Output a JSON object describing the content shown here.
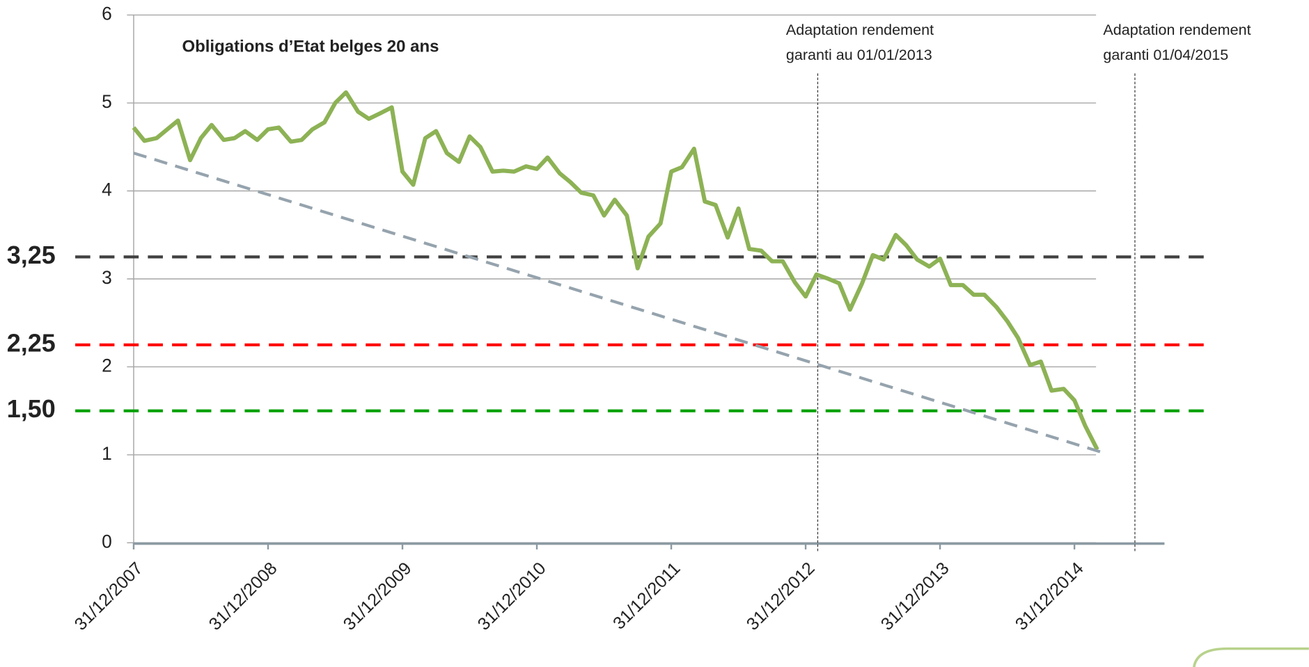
{
  "chart_data": {
    "type": "line",
    "title": "Obligations d’Etat belges 20 ans",
    "xlim": [
      2008,
      2015.67
    ],
    "xticks": [
      {
        "value": 2008,
        "label": "31/12/2007"
      },
      {
        "value": 2009,
        "label": "31/12/2008"
      },
      {
        "value": 2010,
        "label": "31/12/2009"
      },
      {
        "value": 2011,
        "label": "31/12/2010"
      },
      {
        "value": 2012,
        "label": "31/12/2011"
      },
      {
        "value": 2013,
        "label": "31/12/2012"
      },
      {
        "value": 2014,
        "label": "31/12/2013"
      },
      {
        "value": 2015,
        "label": "31/12/2014"
      }
    ],
    "ylim": [
      0,
      6
    ],
    "yticks": [
      0,
      1,
      2,
      3,
      4,
      5,
      6
    ],
    "grid": true,
    "series": [
      {
        "color": "#8db255",
        "x": [
          2008,
          2008.08,
          2008.17,
          2008.25,
          2008.33,
          2008.42,
          2008.5,
          2008.58,
          2008.67,
          2008.75,
          2008.83,
          2008.92,
          2009,
          2009.08,
          2009.17,
          2009.25,
          2009.33,
          2009.42,
          2009.5,
          2009.58,
          2009.67,
          2009.75,
          2009.83,
          2009.92,
          2010,
          2010.08,
          2010.17,
          2010.25,
          2010.33,
          2010.42,
          2010.5,
          2010.58,
          2010.67,
          2010.75,
          2010.83,
          2010.92,
          2011,
          2011.08,
          2011.17,
          2011.25,
          2011.33,
          2011.42,
          2011.5,
          2011.58,
          2011.67,
          2011.75,
          2011.83,
          2011.92,
          2012,
          2012.08,
          2012.17,
          2012.25,
          2012.33,
          2012.42,
          2012.5,
          2012.58,
          2012.67,
          2012.75,
          2012.83,
          2012.92,
          2013,
          2013.08,
          2013.17,
          2013.25,
          2013.33,
          2013.42,
          2013.5,
          2013.58,
          2013.67,
          2013.75,
          2013.83,
          2013.92,
          2014,
          2014.08,
          2014.17,
          2014.25,
          2014.33,
          2014.42,
          2014.5,
          2014.58,
          2014.67,
          2014.75,
          2014.83,
          2014.92,
          2015,
          2015.08,
          2015.17
        ],
        "values": [
          4.72,
          4.57,
          4.6,
          4.7,
          4.8,
          4.35,
          4.6,
          4.75,
          4.58,
          4.6,
          4.68,
          4.58,
          4.7,
          4.72,
          4.56,
          4.58,
          4.7,
          4.78,
          5.0,
          5.12,
          4.9,
          4.82,
          4.88,
          4.95,
          4.22,
          4.07,
          4.6,
          4.68,
          4.43,
          4.33,
          4.62,
          4.5,
          4.22,
          4.23,
          4.22,
          4.28,
          4.25,
          4.38,
          4.2,
          4.1,
          3.98,
          3.95,
          3.72,
          3.9,
          3.72,
          3.12,
          3.48,
          3.63,
          4.22,
          4.27,
          4.48,
          3.88,
          3.84,
          3.47,
          3.8,
          3.34,
          3.32,
          3.2,
          3.2,
          2.96,
          2.8,
          3.05,
          3.0,
          2.95,
          2.65,
          2.95,
          3.27,
          3.22,
          3.5,
          3.38,
          3.22,
          3.14,
          3.23,
          2.93,
          2.93,
          2.82,
          2.82,
          2.68,
          2.52,
          2.33,
          2.02,
          2.06,
          1.73,
          1.75,
          1.62,
          1.33,
          1.06
        ]
      },
      {
        "color": "#95a3ad",
        "dashed": true,
        "x": [
          2008,
          2015.2
        ],
        "values": [
          4.43,
          1.03
        ]
      }
    ],
    "reference_lines": [
      {
        "value": 3.25,
        "label": "3,25",
        "color": "#404040",
        "label_color": "#17375e"
      },
      {
        "value": 2.25,
        "label": "2,25",
        "color": "#ff0000",
        "label_color": "#ff0000"
      },
      {
        "value": 1.5,
        "label": "1,50",
        "color": "#00a000",
        "label_color": "#00a000"
      }
    ],
    "annotations": [
      {
        "x": 2013.09,
        "text": [
          "Adaptation rendement",
          "garanti au 01/01/2013"
        ]
      },
      {
        "x": 2015.45,
        "text": [
          "Adaptation rendement",
          "garanti 01/04/2015"
        ]
      }
    ]
  }
}
